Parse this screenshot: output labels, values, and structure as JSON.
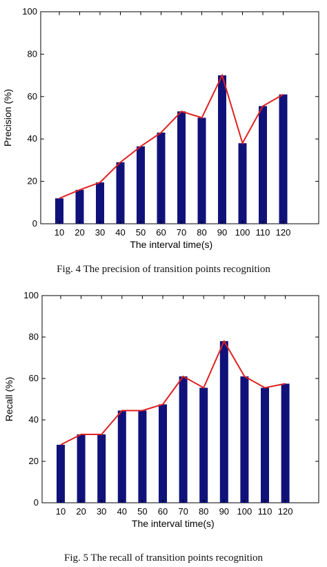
{
  "chart_data": [
    {
      "type": "bar",
      "categories": [
        "10",
        "20",
        "30",
        "40",
        "50",
        "60",
        "70",
        "80",
        "90",
        "100",
        "110",
        "120"
      ],
      "values": [
        12,
        16,
        19.5,
        29,
        36.5,
        43,
        53,
        50,
        70,
        38,
        55.5,
        61
      ],
      "line_values": [
        12,
        16,
        19.5,
        29,
        36.5,
        43,
        53,
        50,
        70,
        38,
        55.5,
        61
      ],
      "yticks": [
        "0",
        "20",
        "40",
        "60",
        "80",
        "100"
      ],
      "ylim": [
        0,
        100
      ],
      "xlabel": "The interval time(s)",
      "ylabel": "Precision (%)",
      "bar_color": "#10127a",
      "line_color": "#e02020",
      "caption": "Fig. 4 The precision of transition points recognition"
    },
    {
      "type": "bar",
      "categories": [
        "10",
        "20",
        "30",
        "40",
        "50",
        "60",
        "70",
        "80",
        "90",
        "100",
        "110",
        "120"
      ],
      "values": [
        28,
        33,
        33,
        44.5,
        44.5,
        47.5,
        61,
        55.5,
        78,
        61,
        55.5,
        57.5
      ],
      "line_values": [
        28,
        33,
        33,
        44.5,
        44.5,
        47.5,
        61,
        55.5,
        78,
        61,
        55.5,
        57.5
      ],
      "yticks": [
        "0",
        "20",
        "40",
        "60",
        "80",
        "100"
      ],
      "ylim": [
        0,
        100
      ],
      "xlabel": "The interval time(s)",
      "ylabel": "Recall (%)",
      "bar_color": "#10127a",
      "line_color": "#e02020",
      "caption": "Fig. 5 The recall of transition points recognition"
    }
  ]
}
